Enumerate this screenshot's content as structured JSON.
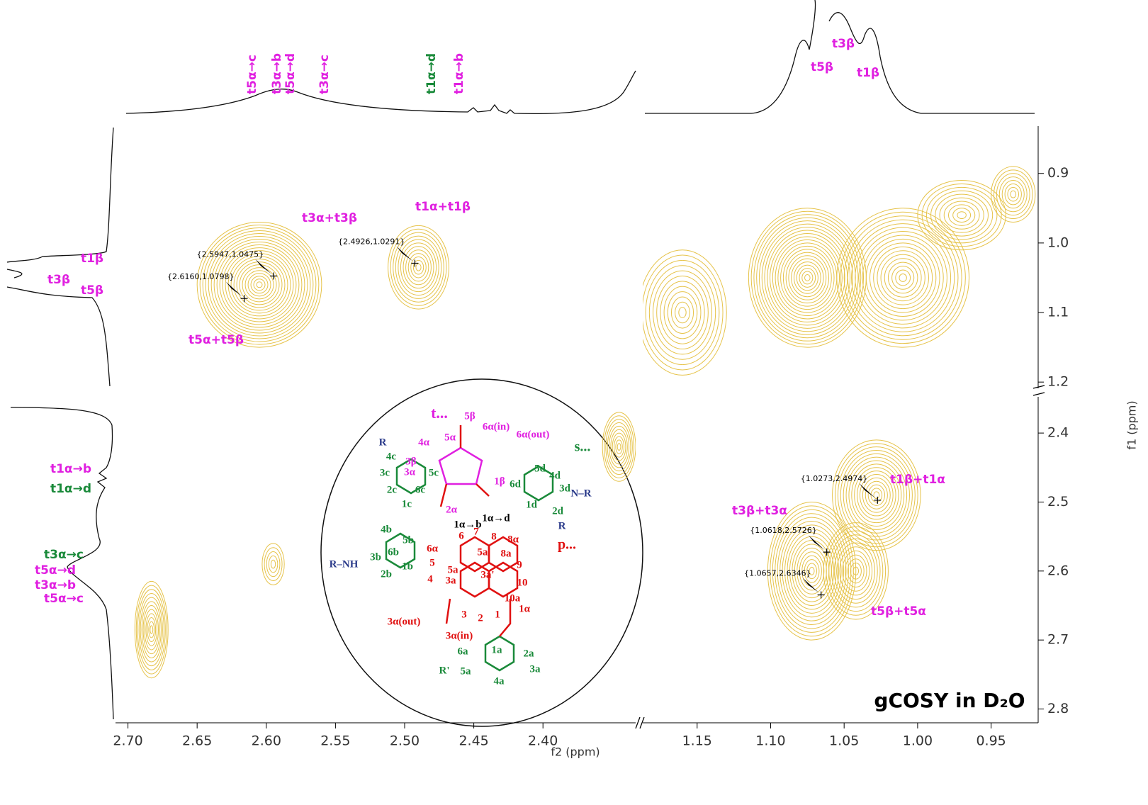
{
  "chart_data": {
    "type": "contour",
    "title": "gCOSY in D₂O",
    "x_label": "f2 (ppm)",
    "y_label": "f1 (ppm)",
    "color": "#e6c34a",
    "x_segments": [
      {
        "xlim": [
          2.709,
          2.333
        ],
        "xticks": [
          {
            "value": 2.7,
            "label": "2.70"
          },
          2.65,
          {
            "value": 2.6,
            "label": "2.60"
          },
          2.55,
          {
            "value": 2.5,
            "label": "2.50"
          },
          2.45,
          {
            "value": 2.4,
            "label": "2.40"
          }
        ]
      },
      {
        "xlim": [
          1.187,
          0.918
        ],
        "xticks": [
          1.15,
          {
            "value": 1.1,
            "label": "1.10"
          },
          1.05,
          {
            "value": 1,
            "label": "1.00"
          },
          0.95
        ]
      }
    ],
    "y_segments": [
      {
        "ylim": [
          0.832,
          1.209
        ],
        "yticks": [
          0.9,
          {
            "value": 1,
            "label": "1.0"
          },
          1.1,
          1.2
        ]
      },
      {
        "ylim": [
          2.3475,
          2.82
        ],
        "yticks": [
          2.4,
          2.5,
          2.6,
          2.7,
          2.8
        ]
      }
    ],
    "contours": [
      {
        "x": 2.605,
        "y": 1.06,
        "rx": 0.045,
        "ry": 0.09,
        "levels": 22
      },
      {
        "x": 2.49,
        "y": 1.035,
        "rx": 0.022,
        "ry": 0.06,
        "levels": 12
      },
      {
        "x": 2.683,
        "y": 2.685,
        "rx": 0.012,
        "ry": 0.07,
        "levels": 12
      },
      {
        "x": 2.595,
        "y": 2.59,
        "rx": 0.008,
        "ry": 0.03,
        "levels": 5
      },
      {
        "x": 2.345,
        "y": 2.42,
        "rx": 0.012,
        "ry": 0.05,
        "levels": 10
      },
      {
        "x": 1.075,
        "y": 1.05,
        "rx": 0.04,
        "ry": 0.1,
        "levels": 22
      },
      {
        "x": 1.01,
        "y": 1.05,
        "rx": 0.045,
        "ry": 0.1,
        "levels": 18
      },
      {
        "x": 1.16,
        "y": 1.1,
        "rx": 0.03,
        "ry": 0.09,
        "levels": 12
      },
      {
        "x": 0.97,
        "y": 0.96,
        "rx": 0.03,
        "ry": 0.05,
        "levels": 10
      },
      {
        "x": 0.935,
        "y": 0.93,
        "rx": 0.015,
        "ry": 0.04,
        "levels": 8
      },
      {
        "x": 1.072,
        "y": 2.6,
        "rx": 0.03,
        "ry": 0.1,
        "levels": 18
      },
      {
        "x": 1.042,
        "y": 2.6,
        "rx": 0.022,
        "ry": 0.07,
        "levels": 12
      },
      {
        "x": 1.028,
        "y": 2.49,
        "rx": 0.03,
        "ry": 0.08,
        "levels": 16
      }
    ],
    "peaks": [
      {
        "x": 2.5947,
        "y": 1.0475,
        "label": "{2.5947,1.0475}"
      },
      {
        "x": 2.616,
        "y": 1.0798,
        "label": "{2.6160,1.0798}"
      },
      {
        "x": 2.4926,
        "y": 1.0291,
        "label": "{2.4926,1.0291}"
      },
      {
        "x": 1.0273,
        "y": 2.4974,
        "label": "{1.0273,2.4974}"
      },
      {
        "x": 1.0618,
        "y": 2.5726,
        "label": "{1.0618,2.5726}"
      },
      {
        "x": 1.0657,
        "y": 2.6346,
        "label": "{1.0657,2.6346}"
      }
    ],
    "annotations": [
      {
        "text": "t3α+t3β",
        "color": "#e020e0"
      },
      {
        "text": "t1α+t1β",
        "color": "#e020e0"
      },
      {
        "text": "t5α+t5β",
        "color": "#e020e0"
      },
      {
        "text": "t1β+t1α",
        "color": "#e020e0"
      },
      {
        "text": "t3β+t3α",
        "color": "#e020e0"
      },
      {
        "text": "t5β+t5α",
        "color": "#e020e0"
      },
      {
        "text": "t5α→c",
        "color": "#e020e0"
      },
      {
        "text": "t3α→b",
        "color": "#e020e0"
      },
      {
        "text": "t5α→d",
        "color": "#e020e0"
      },
      {
        "text": "t3α→c",
        "color": "#e020e0"
      },
      {
        "text": "t1α→d",
        "color": "#1a8a3a"
      },
      {
        "text": "t1α→b",
        "color": "#e020e0"
      },
      {
        "text": "t3β",
        "color": "#e020e0"
      },
      {
        "text": "t5β",
        "color": "#e020e0"
      },
      {
        "text": "t1β",
        "color": "#e020e0"
      },
      {
        "text": "t1β",
        "color": "#e020e0"
      },
      {
        "text": "t3β",
        "color": "#e020e0"
      },
      {
        "text": "t5β",
        "color": "#e020e0"
      },
      {
        "text": "t1α→b",
        "color": "#e020e0"
      },
      {
        "text": "t1α→d",
        "color": "#1a8a3a"
      },
      {
        "text": "t3α→c",
        "color": "#1a8a3a"
      },
      {
        "text": "t5α→d",
        "color": "#e020e0"
      },
      {
        "text": "t3α→b",
        "color": "#e020e0"
      },
      {
        "text": "t5α→c",
        "color": "#e020e0"
      }
    ],
    "structure_labels": [
      {
        "text": "t...",
        "color": "#e020e0"
      },
      {
        "text": "s...",
        "color": "#1a8a3a"
      },
      {
        "text": "p...",
        "color": "#e01010"
      },
      {
        "text": "5β",
        "color": "#e020e0"
      },
      {
        "text": "5α",
        "color": "#e020e0"
      },
      {
        "text": "6α(in)",
        "color": "#e020e0"
      },
      {
        "text": "6α(out)",
        "color": "#e020e0"
      },
      {
        "text": "4α",
        "color": "#e020e0"
      },
      {
        "text": "3β",
        "color": "#e020e0"
      },
      {
        "text": "3α",
        "color": "#e020e0"
      },
      {
        "text": "2α",
        "color": "#e020e0"
      },
      {
        "text": "1β",
        "color": "#e020e0"
      },
      {
        "text": "1α→d",
        "color": "#000000"
      },
      {
        "text": "1α→b",
        "color": "#000000"
      },
      {
        "text": "4c",
        "color": "#1a8a3a"
      },
      {
        "text": "5c",
        "color": "#1a8a3a"
      },
      {
        "text": "6c",
        "color": "#1a8a3a"
      },
      {
        "text": "3c",
        "color": "#1a8a3a"
      },
      {
        "text": "2c",
        "color": "#1a8a3a"
      },
      {
        "text": "1c",
        "color": "#1a8a3a"
      },
      {
        "text": "5d",
        "color": "#1a8a3a"
      },
      {
        "text": "4d",
        "color": "#1a8a3a"
      },
      {
        "text": "3d",
        "color": "#1a8a3a"
      },
      {
        "text": "6d",
        "color": "#1a8a3a"
      },
      {
        "text": "1d",
        "color": "#1a8a3a"
      },
      {
        "text": "2d",
        "color": "#1a8a3a"
      },
      {
        "text": "4b",
        "color": "#1a8a3a"
      },
      {
        "text": "5b",
        "color": "#1a8a3a"
      },
      {
        "text": "6b",
        "color": "#1a8a3a"
      },
      {
        "text": "3b",
        "color": "#1a8a3a"
      },
      {
        "text": "2b",
        "color": "#1a8a3a"
      },
      {
        "text": "1b",
        "color": "#1a8a3a"
      },
      {
        "text": "6α",
        "color": "#e01010"
      },
      {
        "text": "6",
        "color": "#e01010"
      },
      {
        "text": "7",
        "color": "#e01010"
      },
      {
        "text": "8",
        "color": "#e01010"
      },
      {
        "text": "8α",
        "color": "#e01010"
      },
      {
        "text": "5a'",
        "color": "#e01010"
      },
      {
        "text": "8a",
        "color": "#e01010"
      },
      {
        "text": "9",
        "color": "#e01010"
      },
      {
        "text": "10",
        "color": "#e01010"
      },
      {
        "text": "10a",
        "color": "#e01010"
      },
      {
        "text": "1α",
        "color": "#e01010"
      },
      {
        "text": "3a'",
        "color": "#e01010"
      },
      {
        "text": "5a",
        "color": "#e01010"
      },
      {
        "text": "3a",
        "color": "#e01010"
      },
      {
        "text": "5",
        "color": "#e01010"
      },
      {
        "text": "4",
        "color": "#e01010"
      },
      {
        "text": "3",
        "color": "#e01010"
      },
      {
        "text": "2",
        "color": "#e01010"
      },
      {
        "text": "1",
        "color": "#e01010"
      },
      {
        "text": "3α(out)",
        "color": "#e01010"
      },
      {
        "text": "3α(in)",
        "color": "#e01010"
      },
      {
        "text": "6a",
        "color": "#1a8a3a"
      },
      {
        "text": "1a",
        "color": "#1a8a3a"
      },
      {
        "text": "2a",
        "color": "#1a8a3a"
      },
      {
        "text": "5a",
        "color": "#1a8a3a"
      },
      {
        "text": "3a",
        "color": "#1a8a3a"
      },
      {
        "text": "4a",
        "color": "#1a8a3a"
      },
      {
        "text": "R",
        "color": "#2a3a8a"
      },
      {
        "text": "R",
        "color": "#2a3a8a"
      },
      {
        "text": "R'",
        "color": "#1a8a3a"
      },
      {
        "text": "R–NH",
        "color": "#2a3a8a"
      },
      {
        "text": "N–R",
        "color": "#2a3a8a"
      }
    ]
  }
}
